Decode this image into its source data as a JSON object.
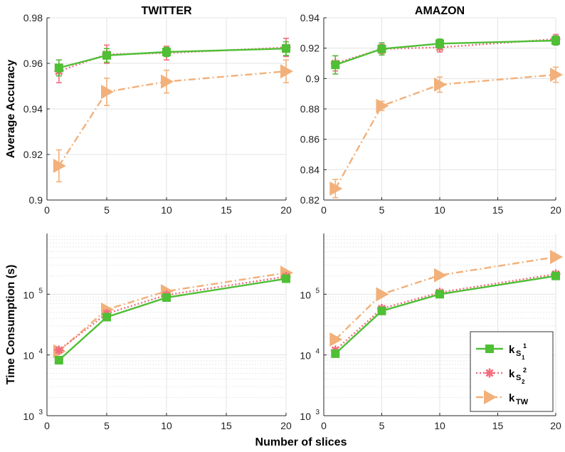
{
  "chart_data": [
    {
      "type": "line",
      "panel": "top-left",
      "title": "TWITTER",
      "ylabel": "Average Accuracy",
      "xlabel": "",
      "xlim": [
        0,
        20
      ],
      "ylim": [
        0.9,
        0.98
      ],
      "xticks": [
        "0",
        "5",
        "10",
        "15",
        "20"
      ],
      "yticks": [
        "0.9",
        "0.92",
        "0.94",
        "0.96",
        "0.98"
      ],
      "grid": true,
      "x": [
        1,
        5,
        10,
        20
      ],
      "series": [
        {
          "name": "kS1",
          "values": [
            0.958,
            0.9635,
            0.965,
            0.9665
          ],
          "errors": [
            0.0035,
            0.003,
            0.002,
            0.003
          ]
        },
        {
          "name": "kS2",
          "values": [
            0.9565,
            0.964,
            0.9645,
            0.967
          ],
          "errors": [
            0.005,
            0.004,
            0.003,
            0.004
          ]
        },
        {
          "name": "kTW",
          "values": [
            0.915,
            0.9475,
            0.952,
            0.9565
          ],
          "errors": [
            0.007,
            0.006,
            0.005,
            0.005
          ]
        }
      ]
    },
    {
      "type": "line",
      "panel": "top-right",
      "title": "AMAZON",
      "ylabel": "",
      "xlabel": "",
      "xlim": [
        0,
        20
      ],
      "ylim": [
        0.82,
        0.94
      ],
      "xticks": [
        "0",
        "5",
        "10",
        "15",
        "20"
      ],
      "yticks": [
        "0.82",
        "0.84",
        "0.86",
        "0.88",
        "0.9",
        "0.92",
        "0.94"
      ],
      "grid": true,
      "x": [
        1,
        5,
        10,
        20
      ],
      "series": [
        {
          "name": "kS1",
          "values": [
            0.909,
            0.9195,
            0.923,
            0.925
          ],
          "errors": [
            0.006,
            0.004,
            0.003,
            0.003
          ]
        },
        {
          "name": "kS2",
          "values": [
            0.91,
            0.9195,
            0.9205,
            0.926
          ],
          "errors": [
            0.005,
            0.003,
            0.003,
            0.003
          ]
        },
        {
          "name": "kTW",
          "values": [
            0.8275,
            0.882,
            0.896,
            0.9025
          ],
          "errors": [
            0.006,
            0.003,
            0.005,
            0.005
          ]
        }
      ]
    },
    {
      "type": "line",
      "panel": "bottom-left",
      "title": "",
      "ylabel": "Time Consumption (s)",
      "xlabel": "",
      "yscale": "log",
      "xlim": [
        0,
        20
      ],
      "ylim": [
        1000,
        1000000
      ],
      "xticks": [
        "0",
        "5",
        "10",
        "15",
        "20"
      ],
      "yticks": [
        {
          "base": "10",
          "exp": "3"
        },
        {
          "base": "10",
          "exp": "4"
        },
        {
          "base": "10",
          "exp": "5"
        }
      ],
      "grid": true,
      "x": [
        1,
        5,
        10,
        20
      ],
      "series": [
        {
          "name": "kS1",
          "values": [
            8200,
            42000,
            88000,
            180000
          ]
        },
        {
          "name": "kS2",
          "values": [
            12000,
            48000,
            97000,
            195000
          ]
        },
        {
          "name": "kTW",
          "values": [
            11500,
            56000,
            112000,
            225000
          ]
        }
      ]
    },
    {
      "type": "line",
      "panel": "bottom-right",
      "title": "",
      "ylabel": "",
      "xlabel": "Number of slices",
      "yscale": "log",
      "xlim": [
        0,
        20
      ],
      "ylim": [
        1000,
        1000000
      ],
      "xticks": [
        "0",
        "5",
        "10",
        "15",
        "20"
      ],
      "yticks": [
        {
          "base": "10",
          "exp": "3"
        },
        {
          "base": "10",
          "exp": "4"
        },
        {
          "base": "10",
          "exp": "5"
        }
      ],
      "grid": true,
      "x": [
        1,
        5,
        10,
        20
      ],
      "series": [
        {
          "name": "kS1",
          "values": [
            10500,
            53000,
            100000,
            200000
          ]
        },
        {
          "name": "kS2",
          "values": [
            12000,
            58000,
            107000,
            215000
          ]
        },
        {
          "name": "kTW",
          "values": [
            18000,
            100000,
            205000,
            410000
          ]
        }
      ]
    }
  ],
  "legend": {
    "placement": "bottom-right panel, lower right",
    "entries": [
      {
        "series": "kS1",
        "main": "k",
        "sub": "S",
        "subsub": "1",
        "sup": "1"
      },
      {
        "series": "kS2",
        "main": "k",
        "sub": "S",
        "subsub": "2",
        "sup": "2"
      },
      {
        "series": "kTW",
        "main": "k",
        "sub": "TW"
      }
    ]
  },
  "colors": {
    "kS1": "#4fbf35",
    "kS2": "#f26d7d",
    "kTW": "#f2b07a",
    "grid": "#e3e3e3",
    "axis": "#262626"
  }
}
